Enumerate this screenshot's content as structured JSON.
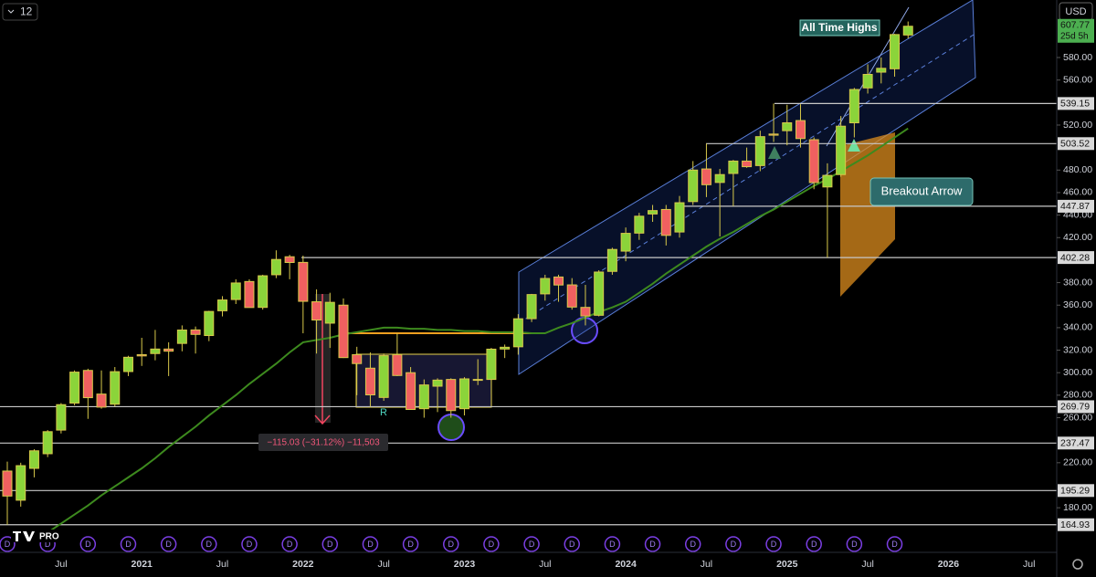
{
  "chart_data": {
    "type": "candlestick",
    "interval": "12",
    "currency": "USD",
    "countdown": "25d 5h",
    "categories": [
      null,
      null,
      null,
      null,
      "Jul",
      null,
      null,
      null,
      null,
      null,
      "2021",
      null,
      null,
      null,
      null,
      null,
      "Jul",
      null,
      null,
      null,
      null,
      null,
      "2022",
      null,
      null,
      null,
      null,
      null,
      "Jul",
      null,
      null,
      null,
      null,
      null,
      "2023",
      null,
      null,
      null,
      null,
      null,
      "Jul",
      null,
      null,
      null,
      null,
      null,
      "2024",
      null,
      null,
      null,
      null,
      null,
      "Jul",
      null,
      null,
      null,
      null,
      null,
      "2025",
      null,
      null,
      null,
      null,
      null,
      "Jul",
      null,
      null,
      null,
      null,
      null,
      "2026",
      null,
      null,
      null,
      null,
      null,
      "Jul"
    ],
    "open": [
      212.6,
      186.7,
      215,
      228,
      249,
      273,
      302,
      281,
      272,
      301,
      316,
      317,
      321,
      326,
      338,
      333,
      355,
      365,
      381,
      358,
      387,
      403,
      398,
      363,
      344,
      360,
      316,
      304,
      278,
      316,
      300,
      268,
      288,
      294,
      268,
      294,
      294,
      321,
      323,
      348,
      370,
      385,
      378,
      358,
      351,
      390,
      408,
      424,
      441,
      445,
      425,
      452,
      481,
      469,
      477,
      488,
      484,
      512,
      515,
      524,
      507,
      465,
      476,
      522,
      553,
      567,
      570,
      600,
      null,
      null,
      null,
      null,
      null,
      null,
      null,
      null,
      null
    ],
    "high": [
      221,
      220,
      232,
      249,
      273,
      302,
      303.5,
      302,
      305,
      315,
      331,
      338,
      327,
      342,
      341,
      355,
      368,
      383,
      383,
      387,
      408.7,
      404.7,
      404,
      374,
      371,
      366,
      323,
      318,
      317,
      335,
      305,
      294,
      295,
      295,
      296,
      312,
      322,
      325,
      352,
      370,
      387,
      387,
      384,
      378,
      391,
      411,
      429,
      442,
      449,
      449,
      457,
      488,
      503.52,
      481,
      489,
      500,
      515,
      539.15,
      538,
      538.5,
      509,
      486,
      528,
      553,
      574,
      580,
      601,
      612,
      null,
      null,
      null,
      null,
      null,
      null,
      null,
      null,
      null
    ],
    "low": [
      164.93,
      181,
      207,
      225,
      246,
      271,
      259,
      268,
      270,
      297,
      306,
      311,
      297,
      319,
      317,
      328,
      350,
      361,
      358,
      356,
      384,
      383,
      335,
      317,
      322,
      313,
      280,
      269.79,
      275,
      297,
      267,
      260,
      265,
      260,
      262,
      289,
      281,
      313,
      316,
      345,
      364,
      363,
      356,
      342,
      350,
      387,
      399,
      418,
      434,
      413,
      420,
      449,
      456,
      421,
      448,
      482,
      479,
      505,
      502,
      500,
      463,
      402.28,
      474,
      509,
      548,
      557,
      563,
      597,
      null,
      null,
      null,
      null,
      null,
      null,
      null,
      null,
      null
    ],
    "close": [
      190.4,
      217.4,
      230.6,
      247.6,
      271.6,
      300.5,
      277.8,
      269.4,
      300.9,
      313.7,
      314.9,
      321,
      319.1,
      337.9,
      334,
      354.4,
      364.6,
      379.7,
      357.9,
      386.1,
      400.6,
      397.9,
      363.4,
      346.8,
      362.5,
      313.4,
      308.1,
      280.3,
      315.1,
      297.5,
      267.3,
      289.1,
      293.4,
      266.3,
      294.5,
      294,
      320.9,
      322.6,
      347.9,
      369.4,
      383.7,
      377.9,
      358.3,
      350.4,
      389.4,
      409.5,
      423.8,
      439,
      444,
      422,
      451,
      480,
      467,
      476,
      488,
      483,
      509.7,
      511,
      522,
      508,
      468.9,
      475.3,
      519,
      551.6,
      565,
      570.4,
      600.4,
      607.77,
      null,
      null,
      null,
      null,
      null,
      null,
      null,
      null,
      null
    ],
    "up_color": "#8bd43a",
    "down_color": "#f06060",
    "wick_color": "#d8c94a",
    "moving_average": {
      "color": "#3d8a1e",
      "values": [
        null,
        null,
        null,
        158,
        166,
        174,
        182,
        191,
        199,
        207,
        215,
        224,
        234,
        243,
        252,
        262,
        271,
        280,
        290,
        299,
        308,
        318,
        327,
        329,
        331,
        334,
        336,
        338,
        340,
        340,
        339,
        339,
        338,
        338,
        337,
        337,
        336,
        336,
        336,
        335,
        335,
        340,
        344,
        349,
        354,
        358,
        363,
        371,
        379,
        388,
        396,
        404,
        412,
        419,
        425,
        432,
        439,
        445,
        452,
        459,
        466,
        472,
        479,
        486,
        493,
        501,
        509,
        517,
        null,
        null,
        null,
        null,
        null,
        null,
        null,
        null,
        null
      ]
    },
    "ylim": [
      142,
      631.1
    ],
    "yticks": [
      {
        "value": 180,
        "label": "180.00"
      },
      {
        "value": 220,
        "label": "220.00"
      },
      {
        "value": 260,
        "label": "260.00"
      },
      {
        "value": 280,
        "label": "280.00"
      },
      {
        "value": 300,
        "label": "300.00"
      },
      {
        "value": 320,
        "label": "320.00"
      },
      {
        "value": 340,
        "label": "340.00"
      },
      {
        "value": 360,
        "label": "360.00"
      },
      {
        "value": 380,
        "label": "380.00"
      },
      {
        "value": 420,
        "label": "420.00"
      },
      {
        "value": 440,
        "label": "440.00"
      },
      {
        "value": 460,
        "label": "460.00"
      },
      {
        "value": 480,
        "label": "480.00"
      },
      {
        "value": 520,
        "label": "520.00"
      },
      {
        "value": 560,
        "label": "560.00"
      },
      {
        "value": 580,
        "label": "580.00"
      }
    ],
    "levels": [
      164.93,
      195.29,
      237.47,
      269.79,
      402.28,
      447.87,
      503.52,
      539.15
    ],
    "dividend_marker": "D",
    "logo_badge": "PRO",
    "annotations": {
      "all_time_highs": "All Time Highs",
      "breakout": "Breakout Arrow",
      "range_marker": "R",
      "measure": "−115.03 (−31.12%) −11,503"
    }
  }
}
